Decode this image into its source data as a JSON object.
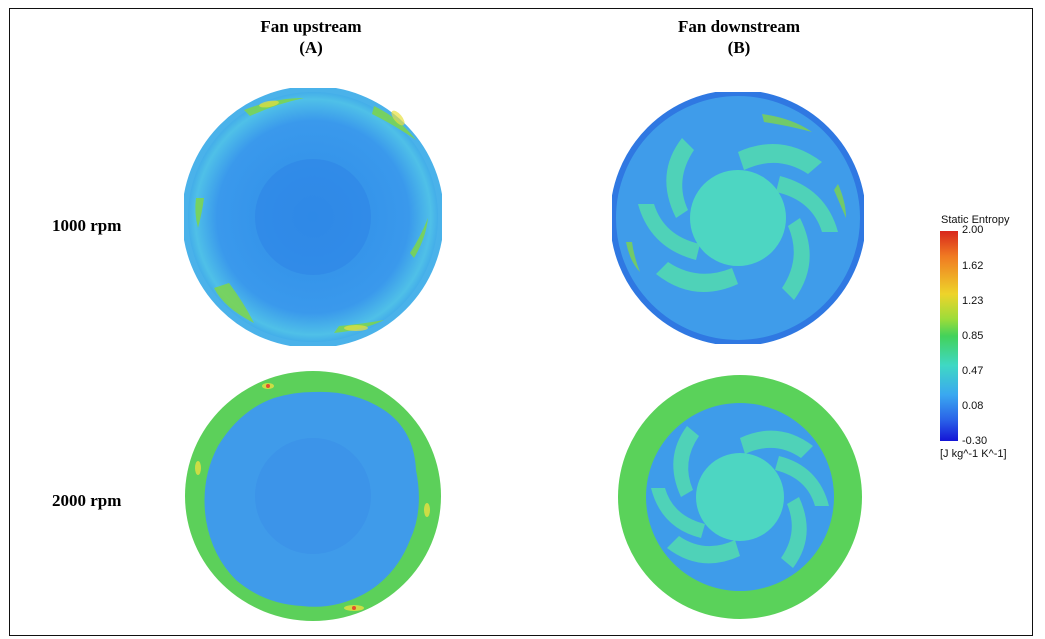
{
  "columns": [
    {
      "title": "Fan upstream",
      "letter": "(A)"
    },
    {
      "title": "Fan downstream",
      "letter": "(B)"
    }
  ],
  "rows": [
    {
      "label": "1000 rpm"
    },
    {
      "label": "2000 rpm"
    }
  ],
  "legend": {
    "title": "Static Entropy",
    "ticks": [
      "2.00",
      "1.62",
      "1.23",
      "0.85",
      "0.47",
      "0.08",
      "-0.30"
    ],
    "unit": "[J kg^-1 K^-1]",
    "colors": [
      "#d8261c",
      "#f07a22",
      "#eed42a",
      "#43d25a",
      "#3fd8c4",
      "#3aa8f0",
      "#1414d6"
    ]
  }
}
